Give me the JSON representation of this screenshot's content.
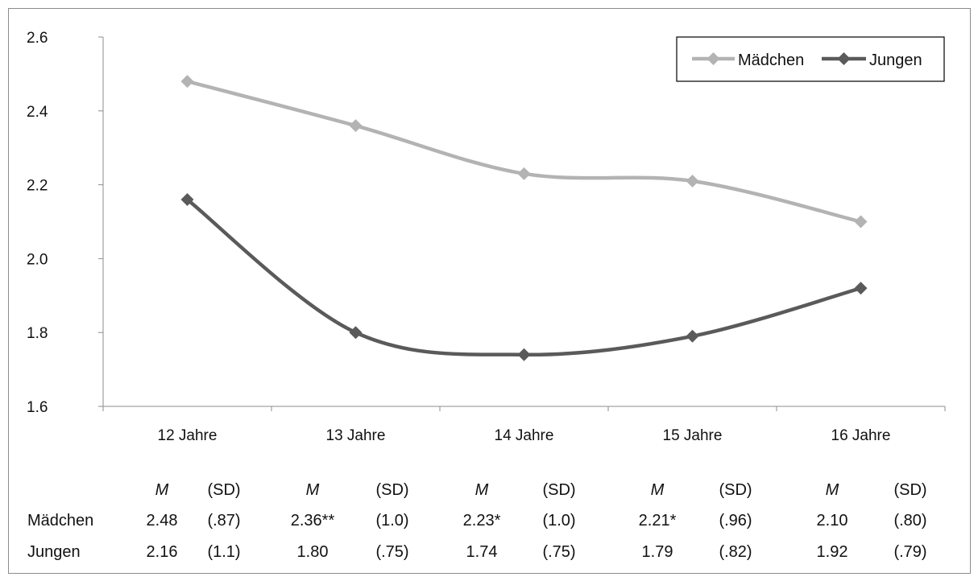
{
  "chart_data": {
    "type": "line",
    "categories": [
      "12 Jahre",
      "13 Jahre",
      "14 Jahre",
      "15 Jahre",
      "16 Jahre"
    ],
    "series": [
      {
        "name": "Mädchen",
        "values": [
          2.48,
          2.36,
          2.23,
          2.21,
          2.1
        ],
        "color": "#b3b3b3"
      },
      {
        "name": "Jungen",
        "values": [
          2.16,
          1.8,
          1.74,
          1.79,
          1.92
        ],
        "color": "#5a5a5a"
      }
    ],
    "ylim": [
      1.6,
      2.6
    ],
    "y_ticks": [
      "1.6",
      "1.8",
      "2.0",
      "2.2",
      "2.4",
      "2.6"
    ],
    "grid": false,
    "legend_position": "top-right",
    "xlabel": "",
    "ylabel": "",
    "title": ""
  },
  "stats_table": {
    "header": [
      "M",
      "(SD)",
      "M",
      "(SD)",
      "M",
      "(SD)",
      "M",
      "(SD)",
      "M",
      "(SD)"
    ],
    "rows": [
      {
        "label": "Mädchen",
        "cells": [
          "2.48",
          "(.87)",
          "2.36**",
          "(1.0)",
          "2.23*",
          "(1.0)",
          "2.21*",
          "(.96)",
          "2.10",
          "(.80)"
        ]
      },
      {
        "label": "Jungen",
        "cells": [
          "2.16",
          "(1.1)",
          "1.80",
          "(.75)",
          "1.74",
          "(.75)",
          "1.79",
          "(.82)",
          "1.92",
          "(.79)"
        ]
      }
    ]
  }
}
